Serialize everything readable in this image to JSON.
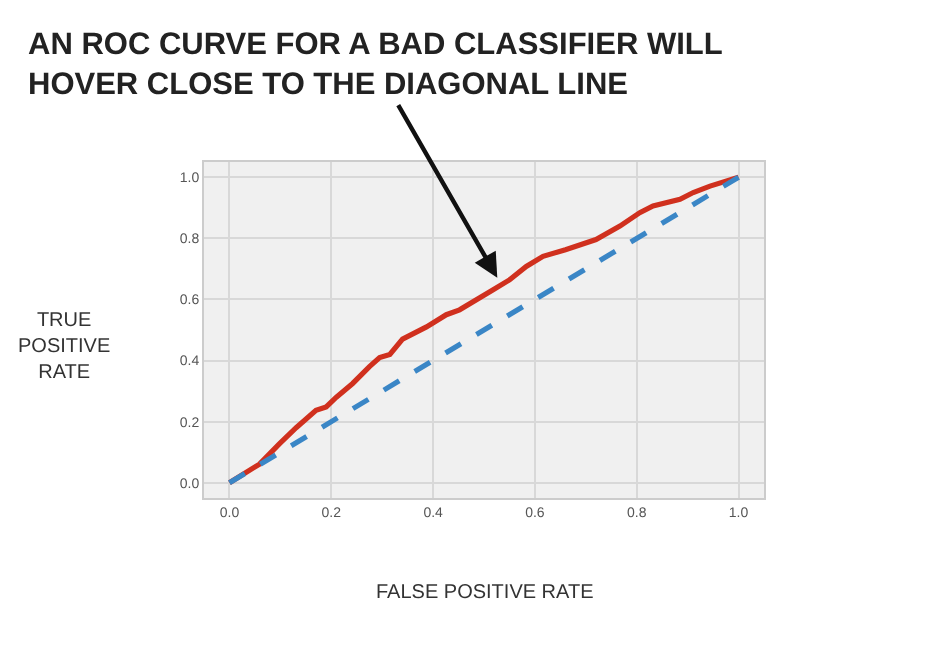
{
  "chart_data": {
    "type": "line",
    "xlabel": "FALSE POSITIVE RATE",
    "ylabel": "TRUE POSITIVE RATE",
    "annotations": [
      {
        "text": "AN ROC CURVE FOR A BAD CLASSIFIER WILL HOVER CLOSE TO THE DIAGONAL LINE",
        "x": 0.53,
        "y": 0.66
      }
    ],
    "series": [
      {
        "color": "#d0301e",
        "line_style": "solid",
        "x": [
          0,
          0.059,
          0.098,
          0.131,
          0.17,
          0.19,
          0.21,
          0.242,
          0.275,
          0.295,
          0.315,
          0.34,
          0.387,
          0.426,
          0.452,
          0.518,
          0.55,
          0.583,
          0.616,
          0.66,
          0.72,
          0.767,
          0.806,
          0.832,
          0.885,
          0.911,
          0.944,
          1
        ],
        "values": [
          0,
          0.061,
          0.127,
          0.18,
          0.237,
          0.248,
          0.28,
          0.325,
          0.38,
          0.41,
          0.42,
          0.47,
          0.51,
          0.55,
          0.566,
          0.632,
          0.664,
          0.708,
          0.741,
          0.763,
          0.796,
          0.84,
          0.884,
          0.906,
          0.928,
          0.95,
          0.971,
          1
        ]
      },
      {
        "color": "#3a86c6",
        "line_style": "dashed",
        "x": [
          0,
          1
        ],
        "values": [
          0,
          1
        ]
      }
    ],
    "xlim": [
      -0.05,
      1.05
    ],
    "ylim": [
      -0.05,
      1.05
    ],
    "xticks": [
      {
        "value": 0,
        "label": "0.0"
      },
      0.2,
      0.4,
      0.6,
      0.8,
      {
        "value": 1,
        "label": "1.0"
      }
    ],
    "yticks": [
      {
        "value": 0,
        "label": "0.0"
      },
      0.2,
      0.4,
      0.6,
      0.8,
      {
        "value": 1,
        "label": "1.0"
      }
    ],
    "grid": true,
    "marker": "none"
  }
}
